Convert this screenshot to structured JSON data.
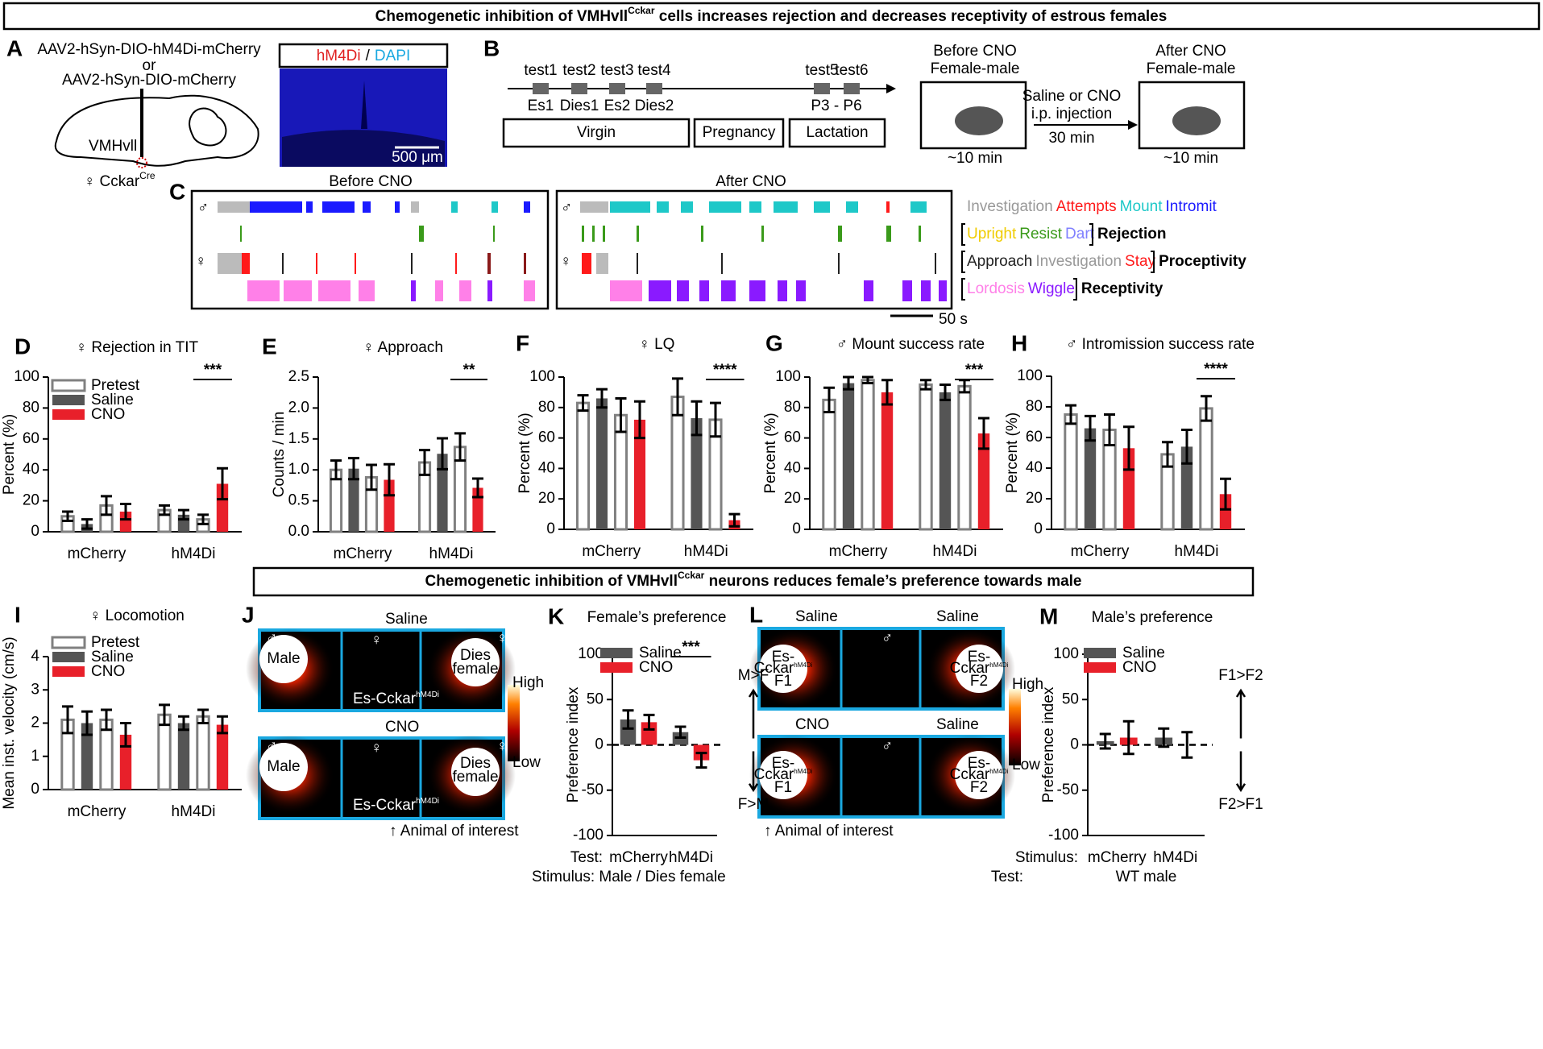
{
  "header": {
    "title": {
      "before": "Chemogenetic inhibition of VMHvll",
      "sup": "Cckar",
      "after": " cells increases rejection and decreases receptivity of estrous females"
    }
  },
  "panel_a": {
    "letter": "A",
    "virus": [
      "AAV2-hSyn-DIO-hM4Di-mCherry",
      "or",
      "AAV2-hSyn-DIO-mCherry"
    ],
    "region": "VMHvll",
    "mouse": {
      "text": "♀ Cckar",
      "sup": "Cre"
    },
    "image_label": {
      "red": "hM4Di",
      "sep": "/",
      "blue": "DAPI"
    },
    "scale": "500 μm"
  },
  "panel_b": {
    "letter": "B",
    "tests": [
      "test1",
      "test2",
      "test3",
      "test4",
      "test5",
      "test6"
    ],
    "stages": [
      "Es1",
      "Dies1",
      "Es2",
      "Dies2"
    ],
    "postpartum": "P3  -  P6",
    "phases": [
      "Virgin",
      "Pregnancy",
      "Lactation"
    ],
    "before": [
      "Before CNO",
      "Female-male"
    ],
    "after": [
      "After CNO",
      "Female-male"
    ],
    "duration": "~10 min",
    "injection": [
      "Saline or CNO",
      "i.p. injection",
      "30 min"
    ]
  },
  "panel_c": {
    "letter": "C",
    "before": "Before CNO",
    "after": "After CNO",
    "male": "♂",
    "female": "♀",
    "scale": "50 s",
    "legend": [
      {
        "items": [
          {
            "text": "Investigation",
            "color": "#999999"
          },
          {
            "text": "Attempts",
            "color": "#ff1a1a"
          },
          {
            "text": "Mount",
            "color": "#1ec8c8"
          },
          {
            "text": "Intromit",
            "color": "#1a1aff"
          }
        ]
      },
      {
        "items": [
          {
            "text": "Upright",
            "color": "#f0cc00"
          },
          {
            "text": "Resist",
            "color": "#3a9a1a"
          },
          {
            "text": "Dart",
            "color": "#8080ff"
          }
        ],
        "label": "Rejection"
      },
      {
        "items": [
          {
            "text": "Approach",
            "color": "#222222"
          },
          {
            "text": "Investigation",
            "color": "#999999"
          },
          {
            "text": "Stay",
            "color": "#ff1a1a"
          }
        ],
        "label": "Proceptivity"
      },
      {
        "items": [
          {
            "text": "Lordosis",
            "color": "#ff80e8"
          },
          {
            "text": "Wiggle",
            "color": "#8a1aff"
          }
        ],
        "label": "Receptivity"
      }
    ]
  },
  "section2": {
    "title": {
      "before": "Chemogenetic inhibition of VMHvll",
      "sup": "Cckar",
      "after": " neurons reduces female’s preference towards male"
    }
  },
  "panel_j": {
    "letter": "J",
    "top": "Saline",
    "bottom": "CNO",
    "male_sym": "♂",
    "female_sym": "♀",
    "male": "Male",
    "dies": [
      "Dies",
      "female"
    ],
    "subject": {
      "text": "Es-Cckar",
      "sup": "hM4Di"
    },
    "note": "Animal of interest",
    "high": "High",
    "low": "Low"
  },
  "panel_l": {
    "letter": "L",
    "top": [
      "Saline",
      "Saline"
    ],
    "bottom": [
      "CNO",
      "Saline"
    ],
    "subject": [
      "Es-",
      "Cckar"
    ],
    "sup": "hM4Di",
    "f": [
      "F1",
      "F2"
    ],
    "note": "Animal of interest",
    "high": "High",
    "low": "Low"
  },
  "chart_data": [
    {
      "type": "bar",
      "letter": "D",
      "title": "♀  Rejection in TIT",
      "y_label": "Percent (%)",
      "categories": [
        "mCherry",
        "hM4Di"
      ],
      "ylim": [
        0,
        100
      ],
      "yticks": [
        0,
        20,
        40,
        60,
        80,
        100
      ],
      "legend": "upper left",
      "edge_color": "#808080",
      "series": [
        {
          "name": "Pretest",
          "color": "#ffffff",
          "values": [
            10,
            14
          ],
          "errors": [
            3,
            3
          ]
        },
        {
          "name": "Saline",
          "color": "#555555",
          "values": [
            5,
            11
          ],
          "errors": [
            3,
            3
          ]
        },
        {
          "color": "#ffffff",
          "values": [
            17,
            8
          ],
          "errors": [
            6,
            3
          ]
        },
        {
          "name": "CNO",
          "color": "#e8202a",
          "values": [
            13,
            31
          ],
          "errors": [
            5,
            10
          ]
        }
      ],
      "annotations": [
        "***"
      ]
    },
    {
      "type": "bar",
      "letter": "E",
      "title": "♀  Approach",
      "y_label": "Counts / min",
      "categories": [
        "mCherry",
        "hM4Di"
      ],
      "ylim": [
        0,
        2.5
      ],
      "yticks": [
        {
          "value": 0,
          "label": "0.0"
        },
        0.5,
        {
          "value": 1,
          "label": "1.0"
        },
        1.5,
        {
          "value": 2,
          "label": "2.0"
        },
        2.5
      ],
      "edge_color": "#808080",
      "series": [
        {
          "color": "#ffffff",
          "values": [
            1.0,
            1.12
          ],
          "errors": [
            0.15,
            0.2
          ]
        },
        {
          "color": "#555555",
          "values": [
            1.02,
            1.26
          ],
          "errors": [
            0.17,
            0.25
          ]
        },
        {
          "color": "#ffffff",
          "values": [
            0.88,
            1.37
          ],
          "errors": [
            0.2,
            0.22
          ]
        },
        {
          "color": "#e8202a",
          "values": [
            0.84,
            0.71
          ],
          "errors": [
            0.25,
            0.15
          ]
        }
      ],
      "annotations": [
        "**"
      ]
    },
    {
      "type": "bar",
      "letter": "F",
      "title": "♀  LQ",
      "y_label": "Percent (%)",
      "categories": [
        "mCherry",
        "hM4Di"
      ],
      "ylim": [
        0,
        100
      ],
      "yticks": [
        0,
        20,
        40,
        60,
        80,
        100
      ],
      "edge_color": "#808080",
      "series": [
        {
          "color": "#ffffff",
          "values": [
            83,
            87
          ],
          "errors": [
            5,
            12
          ]
        },
        {
          "color": "#555555",
          "values": [
            86,
            73
          ],
          "errors": [
            6,
            11
          ]
        },
        {
          "color": "#ffffff",
          "values": [
            75,
            72
          ],
          "errors": [
            11,
            11
          ]
        },
        {
          "color": "#e8202a",
          "values": [
            72,
            6
          ],
          "errors": [
            12,
            4
          ]
        }
      ],
      "annotations": [
        "****"
      ]
    },
    {
      "type": "bar",
      "letter": "G",
      "title": "♂  Mount success rate",
      "y_label": "Percent (%)",
      "categories": [
        "mCherry",
        "hM4Di"
      ],
      "ylim": [
        0,
        100
      ],
      "yticks": [
        0,
        20,
        40,
        60,
        80,
        100
      ],
      "edge_color": "#808080",
      "series": [
        {
          "color": "#ffffff",
          "values": [
            85,
            95
          ],
          "errors": [
            8,
            3
          ]
        },
        {
          "color": "#555555",
          "values": [
            96,
            90
          ],
          "errors": [
            4,
            5
          ]
        },
        {
          "color": "#ffffff",
          "values": [
            98,
            94
          ],
          "errors": [
            2,
            4
          ]
        },
        {
          "color": "#e8202a",
          "values": [
            90,
            63
          ],
          "errors": [
            8,
            10
          ]
        }
      ],
      "annotations": [
        "***"
      ]
    },
    {
      "type": "bar",
      "letter": "H",
      "title": "♂ Intromission success rate",
      "y_label": "Percent (%)",
      "categories": [
        "mCherry",
        "hM4Di"
      ],
      "ylim": [
        0,
        100
      ],
      "yticks": [
        0,
        20,
        40,
        60,
        80,
        100
      ],
      "edge_color": "#808080",
      "series": [
        {
          "color": "#ffffff",
          "values": [
            75,
            49
          ],
          "errors": [
            6,
            8
          ]
        },
        {
          "color": "#555555",
          "values": [
            66,
            54
          ],
          "errors": [
            8,
            11
          ]
        },
        {
          "color": "#ffffff",
          "values": [
            65,
            79
          ],
          "errors": [
            10,
            8
          ]
        },
        {
          "color": "#e8202a",
          "values": [
            53,
            23
          ],
          "errors": [
            14,
            10
          ]
        }
      ],
      "annotations": [
        "****"
      ]
    },
    {
      "type": "bar",
      "letter": "I",
      "title": "♀  Locomotion",
      "y_label": "Mean inst. velocity (cm/s)",
      "categories": [
        "mCherry",
        "hM4Di"
      ],
      "ylim": [
        0,
        4
      ],
      "yticks": [
        0,
        1,
        2,
        3,
        4
      ],
      "legend": "upper left",
      "edge_color": "#808080",
      "series": [
        {
          "name": "Pretest",
          "color": "#ffffff",
          "values": [
            2.1,
            2.25
          ],
          "errors": [
            0.4,
            0.3
          ]
        },
        {
          "name": "Saline",
          "color": "#555555",
          "values": [
            2.0,
            2.0
          ],
          "errors": [
            0.35,
            0.2
          ]
        },
        {
          "color": "#ffffff",
          "values": [
            2.1,
            2.2
          ],
          "errors": [
            0.3,
            0.2
          ]
        },
        {
          "name": "CNO",
          "color": "#e8202a",
          "values": [
            1.65,
            1.95
          ],
          "errors": [
            0.35,
            0.25
          ]
        }
      ],
      "annotations": []
    },
    {
      "type": "bar",
      "letter": "K",
      "title": "Female’s preference",
      "y_label": "Preference index",
      "categories": [
        "mCherry",
        "hM4Di"
      ],
      "x_prefix": "Test:",
      "x_note": [
        "Stimulus: Male / Dies female"
      ],
      "ylim": [
        -100,
        100
      ],
      "yticks": [
        -100,
        -50,
        0,
        50,
        100
      ],
      "zero_line": true,
      "legend": "upper left",
      "edge_color": "#555555",
      "direction": [
        "M>F",
        "F>M"
      ],
      "series": [
        {
          "name": "Saline",
          "color": "#555555",
          "values": [
            28,
            14
          ],
          "errors": [
            10,
            6
          ]
        },
        {
          "name": "CNO",
          "color": "#e8202a",
          "values": [
            25,
            -17
          ],
          "errors": [
            8,
            8
          ]
        }
      ],
      "annotations": [
        "***"
      ]
    },
    {
      "type": "bar",
      "letter": "M",
      "title": "Male’s preference",
      "y_label": "Preference index",
      "categories": [
        "mCherry",
        "hM4Di"
      ],
      "x_prefix": "Stimulus:",
      "x_note": [
        "Test:",
        "WT male"
      ],
      "ylim": [
        -100,
        100
      ],
      "yticks": [
        -100,
        -50,
        0,
        50,
        100
      ],
      "zero_line": true,
      "legend": "upper left",
      "edge_color": "#555555",
      "direction": [
        "F1>F2",
        "F2>F1"
      ],
      "series": [
        {
          "name": "Saline",
          "color": "#555555",
          "values": [
            4,
            8
          ],
          "errors": [
            8,
            10
          ]
        },
        {
          "name": "CNO",
          "color": "#e8202a",
          "values": [
            8,
            0
          ],
          "errors": [
            18,
            14
          ]
        }
      ],
      "annotations": []
    }
  ]
}
